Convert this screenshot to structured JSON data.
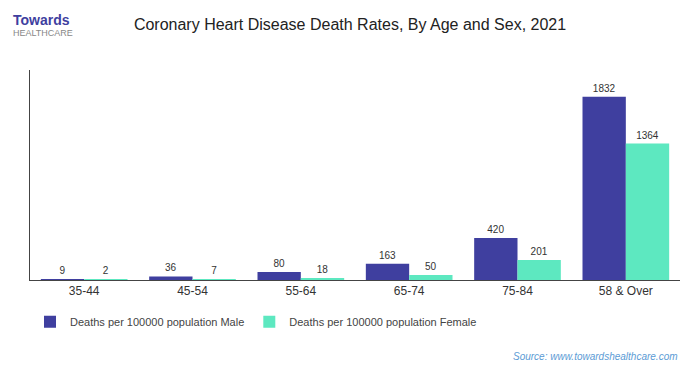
{
  "chart_data": {
    "type": "bar",
    "title": "Coronary Heart Disease Death Rates, By Age and Sex, 2021",
    "categories": [
      "35-44",
      "45-54",
      "55-64",
      "65-74",
      "75-84",
      "58 & Over"
    ],
    "series": [
      {
        "name": "Deaths per 100000 population Male",
        "color": "#3f3f9f",
        "values": [
          9,
          36,
          80,
          163,
          420,
          1832
        ]
      },
      {
        "name": "Deaths per 100000 population Female",
        "color": "#5de8c0",
        "values": [
          2,
          7,
          18,
          50,
          201,
          1364
        ]
      }
    ],
    "ylim": [
      0,
      2100
    ],
    "tick_labels": "x",
    "grid": false,
    "legend": "bottom left",
    "data_labels": true,
    "annotations": [
      "Towards",
      "HEALTHCARE",
      "Source: www.towardshealthcare.com"
    ]
  }
}
